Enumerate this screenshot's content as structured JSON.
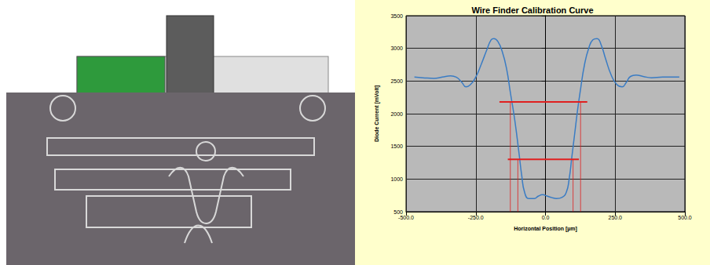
{
  "chart_data": {
    "type": "line",
    "title": "Wire Finder Calibration Curve",
    "x_label": "Horizontal Position [µm]",
    "y_label": "Diode Current [mVolt]",
    "color": "#3a7cc4",
    "x": [
      -470,
      -440,
      -400,
      -370,
      -340,
      -320,
      -300,
      -285,
      -270,
      -250,
      -230,
      -210,
      -195,
      -185,
      -170,
      -155,
      -140,
      -125,
      -110,
      -95,
      -85,
      -75,
      -60,
      -40,
      -25,
      -10,
      5,
      20,
      40,
      60,
      75,
      85,
      95,
      105,
      115,
      125,
      140,
      155,
      170,
      185,
      200,
      215,
      235,
      255,
      275,
      290,
      305,
      325,
      350,
      380,
      420,
      460,
      480
    ],
    "values": [
      2560,
      2550,
      2540,
      2560,
      2580,
      2560,
      2480,
      2410,
      2440,
      2560,
      2760,
      2980,
      3130,
      3150,
      3100,
      2950,
      2700,
      2300,
      1900,
      1400,
      1050,
      800,
      700,
      700,
      740,
      760,
      740,
      720,
      700,
      720,
      800,
      1000,
      1350,
      1700,
      2050,
      2350,
      2750,
      3000,
      3130,
      3150,
      3050,
      2850,
      2600,
      2450,
      2410,
      2480,
      2570,
      2590,
      2570,
      2550,
      2560,
      2560,
      2560
    ],
    "xlim": [
      -500,
      500
    ],
    "xticks": [
      {
        "value": -500,
        "label": "-500.0"
      },
      {
        "value": -250,
        "label": "-250.0"
      },
      {
        "value": 0,
        "label": "0.0"
      },
      {
        "value": 250,
        "label": "250.0"
      },
      {
        "value": 500,
        "label": "500.0"
      }
    ],
    "ylim": [
      500,
      3500
    ],
    "yticks": [
      500,
      1000,
      1500,
      2000,
      2500,
      3000,
      3500
    ],
    "grid": true,
    "reference_lines": {
      "color": "#e02020",
      "segments": [
        {
          "x": [
            -165,
            150
          ],
          "y": [
            2180,
            2180
          ]
        },
        {
          "x": [
            -135,
            120
          ],
          "y": [
            1300,
            1300
          ]
        },
        {
          "x": [
            -126,
            -126
          ],
          "y": [
            500,
            2180
          ]
        },
        {
          "x": [
            -99,
            -99
          ],
          "y": [
            500,
            1300
          ]
        },
        {
          "x": [
            99,
            99
          ],
          "y": [
            500,
            1300
          ]
        },
        {
          "x": [
            126,
            126
          ],
          "y": [
            500,
            2180
          ]
        }
      ]
    }
  }
}
